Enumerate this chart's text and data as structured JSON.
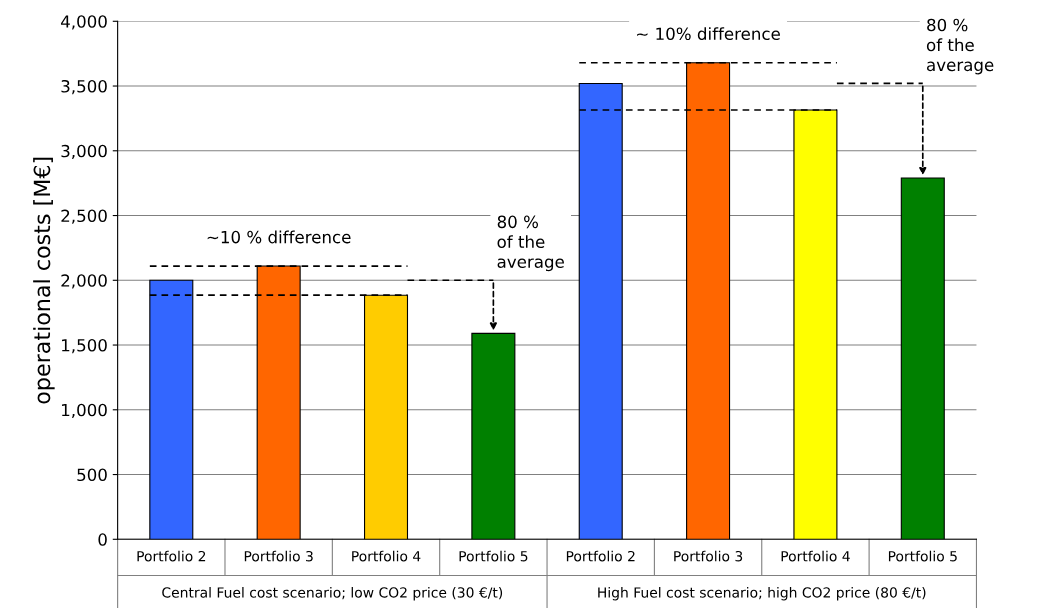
{
  "chart_data": {
    "type": "bar",
    "ylabel": "operational costs [M€]",
    "categories": [
      "Portfolio 2",
      "Portfolio 3",
      "Portfolio 4",
      "Portfolio 5",
      "Portfolio 2",
      "Portfolio 3",
      "Portfolio 4",
      "Portfolio 5"
    ],
    "values": [
      2000,
      2110,
      1885,
      1590,
      3520,
      3680,
      3315,
      2790
    ],
    "colors": [
      "#3366ff",
      "#ff6600",
      "#ffcc00",
      "#008000",
      "#3366ff",
      "#ff6600",
      "#ffff00",
      "#008000"
    ],
    "ylim": [
      0,
      4000
    ],
    "yticks": [
      0,
      500,
      {
        "value": 1000,
        "label": "1,000"
      },
      {
        "value": 1500,
        "label": "1,500"
      },
      {
        "value": 2000,
        "label": "2,000"
      },
      {
        "value": 2500,
        "label": "2,500"
      },
      {
        "value": 3000,
        "label": "3,000"
      },
      {
        "value": 3500,
        "label": "3,500"
      },
      {
        "value": 4000,
        "label": "4,000"
      }
    ],
    "grid": "y",
    "legend": false,
    "ref_lines": [
      {
        "axis": "y",
        "value": 2110,
        "line_style": "dashed"
      },
      {
        "axis": "y",
        "value": 1885,
        "line_style": "dashed"
      },
      {
        "axis": "y",
        "value": 2000,
        "line_style": "dashed",
        "label": "80 %\nof the\naverage"
      },
      {
        "axis": "y",
        "value": 3680,
        "line_style": "dashed"
      },
      {
        "axis": "y",
        "value": 3315,
        "line_style": "dashed"
      },
      {
        "axis": "y",
        "value": 3520,
        "line_style": "dashed",
        "label": "80 %\nof the\naverage"
      }
    ],
    "annotations": [
      "Central Fuel cost scenario; low CO2 price (30 €/t)",
      "High Fuel cost scenario; high CO2 price (80 €/t)",
      "~10 % difference",
      "~ 10% difference"
    ]
  }
}
